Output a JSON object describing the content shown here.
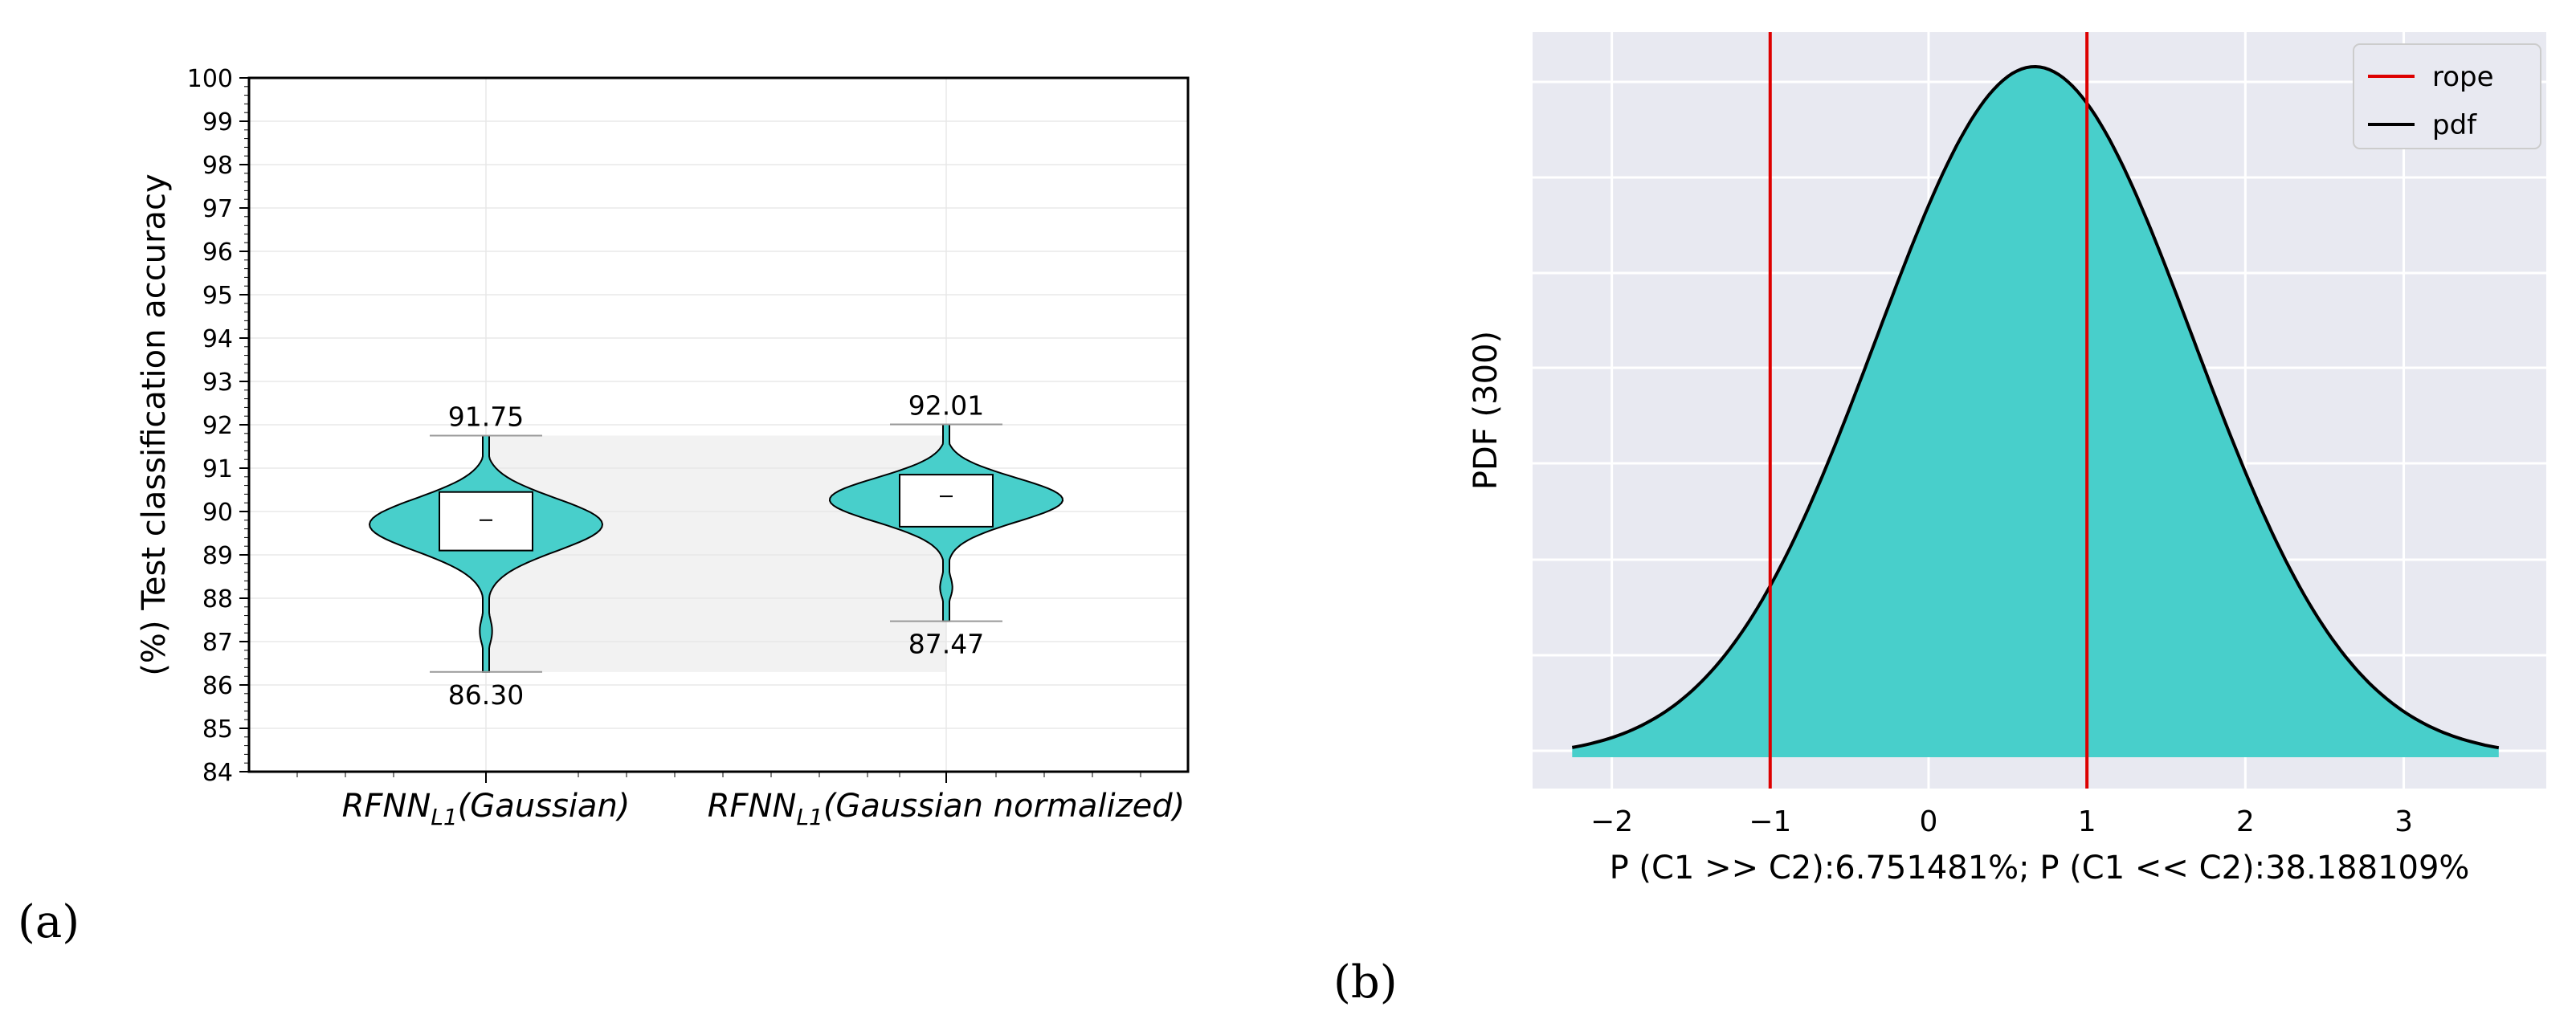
{
  "panel_labels": {
    "a": "(a)",
    "b": "(b)"
  },
  "chart_data": [
    {
      "type": "violin",
      "ylabel": "(%) Test classification accuracy",
      "ylim": [
        84,
        100
      ],
      "yticks": [
        84,
        85,
        86,
        87,
        88,
        89,
        90,
        91,
        92,
        93,
        94,
        95,
        96,
        97,
        98,
        99,
        100
      ],
      "grid": true,
      "violins": [
        {
          "label_main": "RFNN",
          "label_sub": "L1",
          "label_rest": "(Gaussian)",
          "min": 86.3,
          "max": 91.75,
          "median": 89.8,
          "q1": 89.1,
          "q3": 90.45,
          "min_label": "86.30",
          "max_label": "91.75"
        },
        {
          "label_main": "RFNN",
          "label_sub": "L1",
          "label_rest": "(Gaussian normalized)",
          "min": 87.47,
          "max": 92.01,
          "median": 90.35,
          "q1": 89.65,
          "q3": 90.85,
          "min_label": "87.47",
          "max_label": "92.01"
        }
      ],
      "colors": {
        "fill": "#48cfcb",
        "band": "#f2f2f2"
      }
    },
    {
      "type": "area",
      "ylabel": "PDF (300)",
      "xlabel": "P (C1 >> C2):6.751481%; P (C1 << C2):38.188109%",
      "xlim": [
        -2.5,
        3.9
      ],
      "xticks": [
        -2,
        -1,
        0,
        1,
        2,
        3
      ],
      "xtick_labels": [
        "−2",
        "−1",
        "0",
        "1",
        "2",
        "3"
      ],
      "x_start": -2.25,
      "x_end": 3.6,
      "mean": 0.67,
      "sd": 1.0,
      "rope": [
        -1,
        1
      ],
      "legend": [
        {
          "name": "rope",
          "color": "#dd0000"
        },
        {
          "name": "pdf",
          "color": "#000000"
        }
      ],
      "legend_position": "top-right",
      "colors": {
        "fill": "#48cfcb",
        "background": "#e8e9f1",
        "grid": "#ffffff"
      }
    }
  ]
}
